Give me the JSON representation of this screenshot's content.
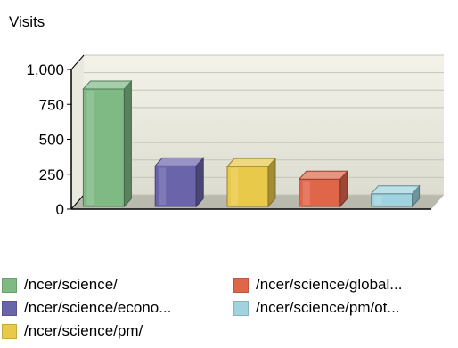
{
  "chart_data": {
    "type": "bar",
    "title": "",
    "ylabel": "Visits",
    "xlabel": "",
    "ylim": [
      0,
      1000
    ],
    "yticks": [
      "0",
      "250",
      "500",
      "750",
      "1,000"
    ],
    "grid": true,
    "legend_position": "bottom",
    "categories": [
      "/ncer/science/",
      "/ncer/science/econo...",
      "/ncer/science/pm/",
      "/ncer/science/global...",
      "/ncer/science/pm/ot..."
    ],
    "values": [
      860,
      310,
      305,
      215,
      110
    ],
    "colors": [
      "#7fba85",
      "#6a64aa",
      "#e8c94a",
      "#e0664a",
      "#9fd3df"
    ]
  }
}
